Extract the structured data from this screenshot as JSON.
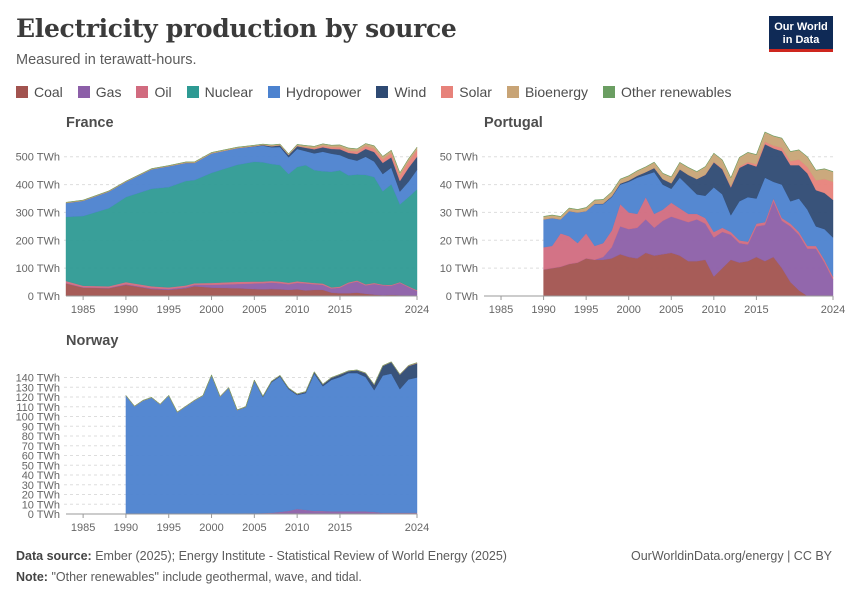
{
  "header": {
    "title": "Electricity production by source",
    "subtitle": "Measured in terawatt-hours.",
    "logo_line1": "Our World",
    "logo_line2": "in Data"
  },
  "legend": [
    {
      "name": "Coal",
      "color": "#a2534f"
    },
    {
      "name": "Gas",
      "color": "#8c5fa8"
    },
    {
      "name": "Oil",
      "color": "#d16b7f"
    },
    {
      "name": "Nuclear",
      "color": "#2e9a93"
    },
    {
      "name": "Hydropower",
      "color": "#4c82cf"
    },
    {
      "name": "Wind",
      "color": "#2e4a73"
    },
    {
      "name": "Solar",
      "color": "#e7827a"
    },
    {
      "name": "Bioenergy",
      "color": "#c8a476"
    },
    {
      "name": "Other renewables",
      "color": "#6b9e62"
    }
  ],
  "footer": {
    "source_label": "Data source:",
    "source_text": "Ember (2025); Energy Institute - Statistical Review of World Energy (2025)",
    "note_label": "Note:",
    "note_text": "\"Other renewables\" include geothermal, wave, and tidal.",
    "right_text": "OurWorldinData.org/energy | CC BY"
  },
  "chart_data": [
    {
      "type": "area",
      "title": "France",
      "x_ticks": [
        1985,
        1990,
        1995,
        2000,
        2005,
        2010,
        2015,
        2024
      ],
      "y_ticks": [
        "0 TWh",
        "100 TWh",
        "200 TWh",
        "300 TWh",
        "400 TWh",
        "500 TWh"
      ],
      "y_tick_values": [
        0,
        100,
        200,
        300,
        400,
        500
      ],
      "xlim": [
        1983,
        2024
      ],
      "ylim": [
        0,
        560
      ],
      "x": [
        1983,
        1985,
        1988,
        1990,
        1993,
        1995,
        1997,
        1998,
        2000,
        2003,
        2005,
        2006,
        2007,
        2008,
        2009,
        2010,
        2011,
        2012,
        2013,
        2014,
        2015,
        2016,
        2017,
        2018,
        2019,
        2020,
        2021,
        2022,
        2023,
        2024
      ],
      "series": [
        {
          "name": "Coal",
          "values": [
            45,
            30,
            28,
            40,
            25,
            22,
            28,
            35,
            30,
            28,
            25,
            24,
            25,
            24,
            22,
            24,
            20,
            22,
            22,
            12,
            10,
            10,
            12,
            8,
            5,
            3,
            4,
            3,
            2,
            1
          ]
        },
        {
          "name": "Gas",
          "values": [
            1,
            1,
            1,
            2,
            3,
            3,
            4,
            5,
            10,
            15,
            20,
            22,
            23,
            22,
            20,
            23,
            25,
            20,
            18,
            15,
            20,
            35,
            40,
            30,
            38,
            35,
            33,
            44,
            30,
            17
          ]
        },
        {
          "name": "Oil",
          "values": [
            8,
            6,
            6,
            8,
            7,
            6,
            6,
            6,
            7,
            8,
            7,
            6,
            6,
            6,
            6,
            6,
            5,
            5,
            5,
            4,
            4,
            4,
            4,
            4,
            4,
            3,
            3,
            3,
            3,
            3
          ]
        },
        {
          "name": "Nuclear",
          "values": [
            230,
            250,
            280,
            305,
            350,
            360,
            375,
            370,
            395,
            420,
            430,
            428,
            420,
            418,
            390,
            410,
            420,
            405,
            403,
            415,
            417,
            384,
            380,
            393,
            380,
            335,
            361,
            279,
            320,
            362
          ]
        },
        {
          "name": "Hydropower",
          "values": [
            50,
            55,
            60,
            55,
            70,
            75,
            65,
            62,
            70,
            60,
            55,
            60,
            60,
            65,
            60,
            65,
            50,
            60,
            70,
            65,
            55,
            60,
            50,
            65,
            56,
            62,
            60,
            46,
            55,
            70
          ]
        },
        {
          "name": "Wind",
          "values": [
            0,
            0,
            0,
            0,
            0,
            0,
            0,
            0,
            0,
            0,
            1,
            2,
            4,
            6,
            8,
            10,
            12,
            15,
            16,
            17,
            21,
            21,
            24,
            28,
            34,
            40,
            37,
            38,
            50,
            47
          ]
        },
        {
          "name": "Solar",
          "values": [
            0,
            0,
            0,
            0,
            0,
            0,
            0,
            0,
            0,
            0,
            0,
            0,
            0,
            0,
            0,
            1,
            2,
            4,
            5,
            6,
            7,
            8,
            9,
            10,
            12,
            13,
            15,
            19,
            22,
            24
          ]
        },
        {
          "name": "Bioenergy",
          "values": [
            2,
            2,
            2,
            2,
            2,
            2,
            3,
            3,
            3,
            3,
            3,
            3,
            4,
            4,
            4,
            5,
            6,
            6,
            7,
            7,
            8,
            9,
            9,
            9,
            10,
            10,
            10,
            10,
            10,
            10
          ]
        },
        {
          "name": "Other renewables",
          "values": [
            0.5,
            0.5,
            0.5,
            0.5,
            0.5,
            0.5,
            0.5,
            0.5,
            0.5,
            0.5,
            0.5,
            0.5,
            0.5,
            0.5,
            0.5,
            0.5,
            0.5,
            0.5,
            0.5,
            0.5,
            0.5,
            0.5,
            0.5,
            0.5,
            0.5,
            0.5,
            0.5,
            0.5,
            0.5,
            0.5
          ]
        }
      ]
    },
    {
      "type": "area",
      "title": "Portugal",
      "x_ticks": [
        1985,
        1990,
        1995,
        2000,
        2005,
        2010,
        2015,
        2024
      ],
      "y_ticks": [
        "0 TWh",
        "10 TWh",
        "20 TWh",
        "30 TWh",
        "40 TWh",
        "50 TWh"
      ],
      "y_tick_values": [
        0,
        10,
        20,
        30,
        40,
        50
      ],
      "xlim": [
        1983,
        2024
      ],
      "ylim": [
        0,
        56
      ],
      "x": [
        1990,
        1991,
        1992,
        1993,
        1994,
        1995,
        1996,
        1997,
        1998,
        1999,
        2000,
        2001,
        2002,
        2003,
        2004,
        2005,
        2006,
        2007,
        2008,
        2009,
        2010,
        2011,
        2012,
        2013,
        2014,
        2015,
        2016,
        2017,
        2018,
        2019,
        2020,
        2021,
        2022,
        2023,
        2024
      ],
      "series": [
        {
          "name": "Coal",
          "values": [
            9.5,
            10,
            10.5,
            11.5,
            12,
            13.5,
            13,
            13,
            13.5,
            15,
            14,
            13.5,
            15.5,
            14.5,
            15,
            15.5,
            14.5,
            12.5,
            12.5,
            13,
            7,
            10,
            13,
            12,
            12.5,
            14,
            12.5,
            14,
            10,
            5,
            2,
            0,
            0,
            0,
            0
          ]
        },
        {
          "name": "Gas",
          "values": [
            0,
            0,
            0,
            0,
            0,
            0,
            0,
            1,
            4,
            10,
            10,
            11,
            12,
            10,
            12,
            13,
            13,
            14,
            15,
            13,
            14,
            13,
            9,
            7,
            6,
            11,
            13,
            20,
            17,
            20,
            20,
            17,
            17,
            12,
            6
          ]
        },
        {
          "name": "Oil",
          "values": [
            8,
            8,
            12,
            10,
            7,
            9,
            5,
            5,
            6,
            8,
            6,
            5,
            8,
            5,
            4,
            5,
            4,
            3,
            2,
            2,
            2,
            1.5,
            1,
            1,
            1,
            1,
            1,
            1,
            1,
            1,
            1,
            1,
            1,
            1,
            1
          ]
        },
        {
          "name": "Hydropower",
          "values": [
            10,
            10,
            5,
            9,
            11,
            8,
            15,
            14,
            12,
            7,
            11,
            13,
            8,
            15,
            9,
            5,
            11,
            10,
            7,
            8,
            16,
            12,
            6,
            14,
            16,
            9,
            16,
            6,
            12,
            8,
            12,
            13,
            7,
            11,
            14
          ]
        },
        {
          "name": "Wind",
          "values": [
            0,
            0,
            0,
            0,
            0,
            0,
            0.1,
            0.2,
            0.3,
            0.4,
            0.5,
            0.7,
            1,
            1.5,
            2,
            2,
            3,
            4,
            5.5,
            7.5,
            9,
            9,
            10,
            12,
            12,
            11.5,
            12,
            12,
            12,
            13,
            12,
            13,
            13,
            13,
            13.5
          ]
        },
        {
          "name": "Solar",
          "values": [
            0,
            0,
            0,
            0,
            0,
            0,
            0,
            0,
            0,
            0,
            0,
            0,
            0,
            0,
            0,
            0,
            0,
            0,
            0,
            0.1,
            0.2,
            0.3,
            0.4,
            0.5,
            0.6,
            0.8,
            0.9,
            1,
            1.2,
            1.4,
            2,
            2.3,
            3.5,
            5,
            6.5
          ]
        },
        {
          "name": "Bioenergy",
          "values": [
            1,
            1,
            1,
            1,
            1,
            1.2,
            1.3,
            1.4,
            1.5,
            1.5,
            1.6,
            1.7,
            1.8,
            2,
            2,
            2.2,
            2.4,
            2.6,
            2.6,
            2.8,
            3,
            3,
            3,
            3.2,
            3.4,
            3.4,
            3.4,
            3.4,
            3.4,
            3.4,
            3.4,
            3.6,
            3.6,
            3.6,
            3.6
          ]
        },
        {
          "name": "Other renewables",
          "values": [
            0.1,
            0.1,
            0.1,
            0.1,
            0.1,
            0.1,
            0.1,
            0.1,
            0.1,
            0.1,
            0.1,
            0.1,
            0.1,
            0.1,
            0.1,
            0.1,
            0.1,
            0.1,
            0.1,
            0.1,
            0.1,
            0.1,
            0.1,
            0.1,
            0.1,
            0.1,
            0.1,
            0.1,
            0.1,
            0.1,
            0.1,
            0.1,
            0.1,
            0.1,
            0.1
          ]
        }
      ]
    },
    {
      "type": "area",
      "title": "Norway",
      "x_ticks": [
        1985,
        1990,
        1995,
        2000,
        2005,
        2010,
        2015,
        2024
      ],
      "y_ticks": [
        "0 TWh",
        "10 TWh",
        "20 TWh",
        "30 TWh",
        "40 TWh",
        "50 TWh",
        "60 TWh",
        "70 TWh",
        "80 TWh",
        "90 TWh",
        "100 TWh",
        "110 TWh",
        "120 TWh",
        "130 TWh",
        "140 TWh"
      ],
      "y_tick_values": [
        0,
        10,
        20,
        30,
        40,
        50,
        60,
        70,
        80,
        90,
        100,
        110,
        120,
        130,
        140
      ],
      "xlim": [
        1983,
        2024
      ],
      "ylim": [
        0,
        158
      ],
      "x": [
        1990,
        1991,
        1992,
        1993,
        1994,
        1995,
        1996,
        1997,
        1998,
        1999,
        2000,
        2001,
        2002,
        2003,
        2004,
        2005,
        2006,
        2007,
        2008,
        2009,
        2010,
        2011,
        2012,
        2013,
        2014,
        2015,
        2016,
        2017,
        2018,
        2019,
        2020,
        2021,
        2022,
        2023,
        2024
      ],
      "series": [
        {
          "name": "Coal",
          "values": [
            0,
            0,
            0,
            0,
            0,
            0,
            0,
            0,
            0,
            0,
            0,
            0,
            0,
            0,
            0,
            0,
            0,
            0,
            0,
            0,
            0,
            0,
            0,
            0,
            0,
            0,
            0,
            0,
            0,
            0,
            0,
            0,
            0,
            0,
            0
          ]
        },
        {
          "name": "Gas",
          "values": [
            0.3,
            0.3,
            0.3,
            0.3,
            0.3,
            0.3,
            0.3,
            0.3,
            0.3,
            0.3,
            0.3,
            0.3,
            0.3,
            0.4,
            0.5,
            0.6,
            0.8,
            1,
            2,
            3,
            5,
            4,
            3,
            3,
            2.5,
            2.5,
            2.5,
            2.5,
            2.5,
            2,
            1,
            1,
            1,
            1,
            1
          ]
        },
        {
          "name": "Oil",
          "values": [
            0.1,
            0.1,
            0.1,
            0.1,
            0.1,
            0.1,
            0.1,
            0.1,
            0.1,
            0.1,
            0.1,
            0.1,
            0.1,
            0.1,
            0.1,
            0.1,
            0.1,
            0.1,
            0.1,
            0.1,
            0.1,
            0.1,
            0.1,
            0.1,
            0.1,
            0.1,
            0.1,
            0.1,
            0.1,
            0.1,
            0.1,
            0.1,
            0.1,
            0.1,
            0.1
          ]
        },
        {
          "name": "Hydropower",
          "values": [
            121,
            110,
            116,
            119,
            112,
            121,
            104,
            110,
            116,
            121,
            142,
            120,
            129,
            106,
            109,
            136,
            119,
            134,
            139,
            125,
            117,
            120,
            141,
            128,
            135,
            138,
            142,
            142,
            138,
            125,
            141,
            143,
            127,
            137,
            139
          ]
        },
        {
          "name": "Wind",
          "values": [
            0,
            0,
            0,
            0,
            0,
            0,
            0,
            0,
            0,
            0,
            0,
            0,
            0,
            0.1,
            0.3,
            0.5,
            0.7,
            0.9,
            0.9,
            1,
            0.9,
            1.3,
            1.6,
            1.9,
            2.2,
            2.5,
            2.1,
            2.9,
            3.9,
            5.5,
            9.9,
            11.8,
            14.8,
            13.7,
            14.5
          ]
        },
        {
          "name": "Solar",
          "values": [
            0,
            0,
            0,
            0,
            0,
            0,
            0,
            0,
            0,
            0,
            0,
            0,
            0,
            0,
            0,
            0,
            0,
            0,
            0,
            0,
            0,
            0,
            0,
            0,
            0,
            0,
            0,
            0,
            0,
            0,
            0,
            0,
            0.2,
            0.3,
            0.4
          ]
        },
        {
          "name": "Bioenergy",
          "values": [
            0.3,
            0.3,
            0.3,
            0.3,
            0.3,
            0.3,
            0.3,
            0.3,
            0.3,
            0.3,
            0.3,
            0.3,
            0.3,
            0.3,
            0.3,
            0.3,
            0.3,
            0.3,
            0.3,
            0.3,
            0.3,
            0.3,
            0.3,
            0.3,
            0.3,
            0.3,
            0.3,
            0.3,
            0.3,
            0.3,
            0.3,
            0.3,
            0.3,
            0.3,
            0.3
          ]
        },
        {
          "name": "Other renewables",
          "values": [
            0,
            0,
            0,
            0,
            0,
            0,
            0,
            0,
            0,
            0,
            0,
            0,
            0,
            0,
            0,
            0,
            0,
            0,
            0,
            0,
            0,
            0,
            0,
            0,
            0,
            0,
            0,
            0,
            0,
            0,
            0,
            0,
            0,
            0,
            0
          ]
        }
      ]
    }
  ]
}
